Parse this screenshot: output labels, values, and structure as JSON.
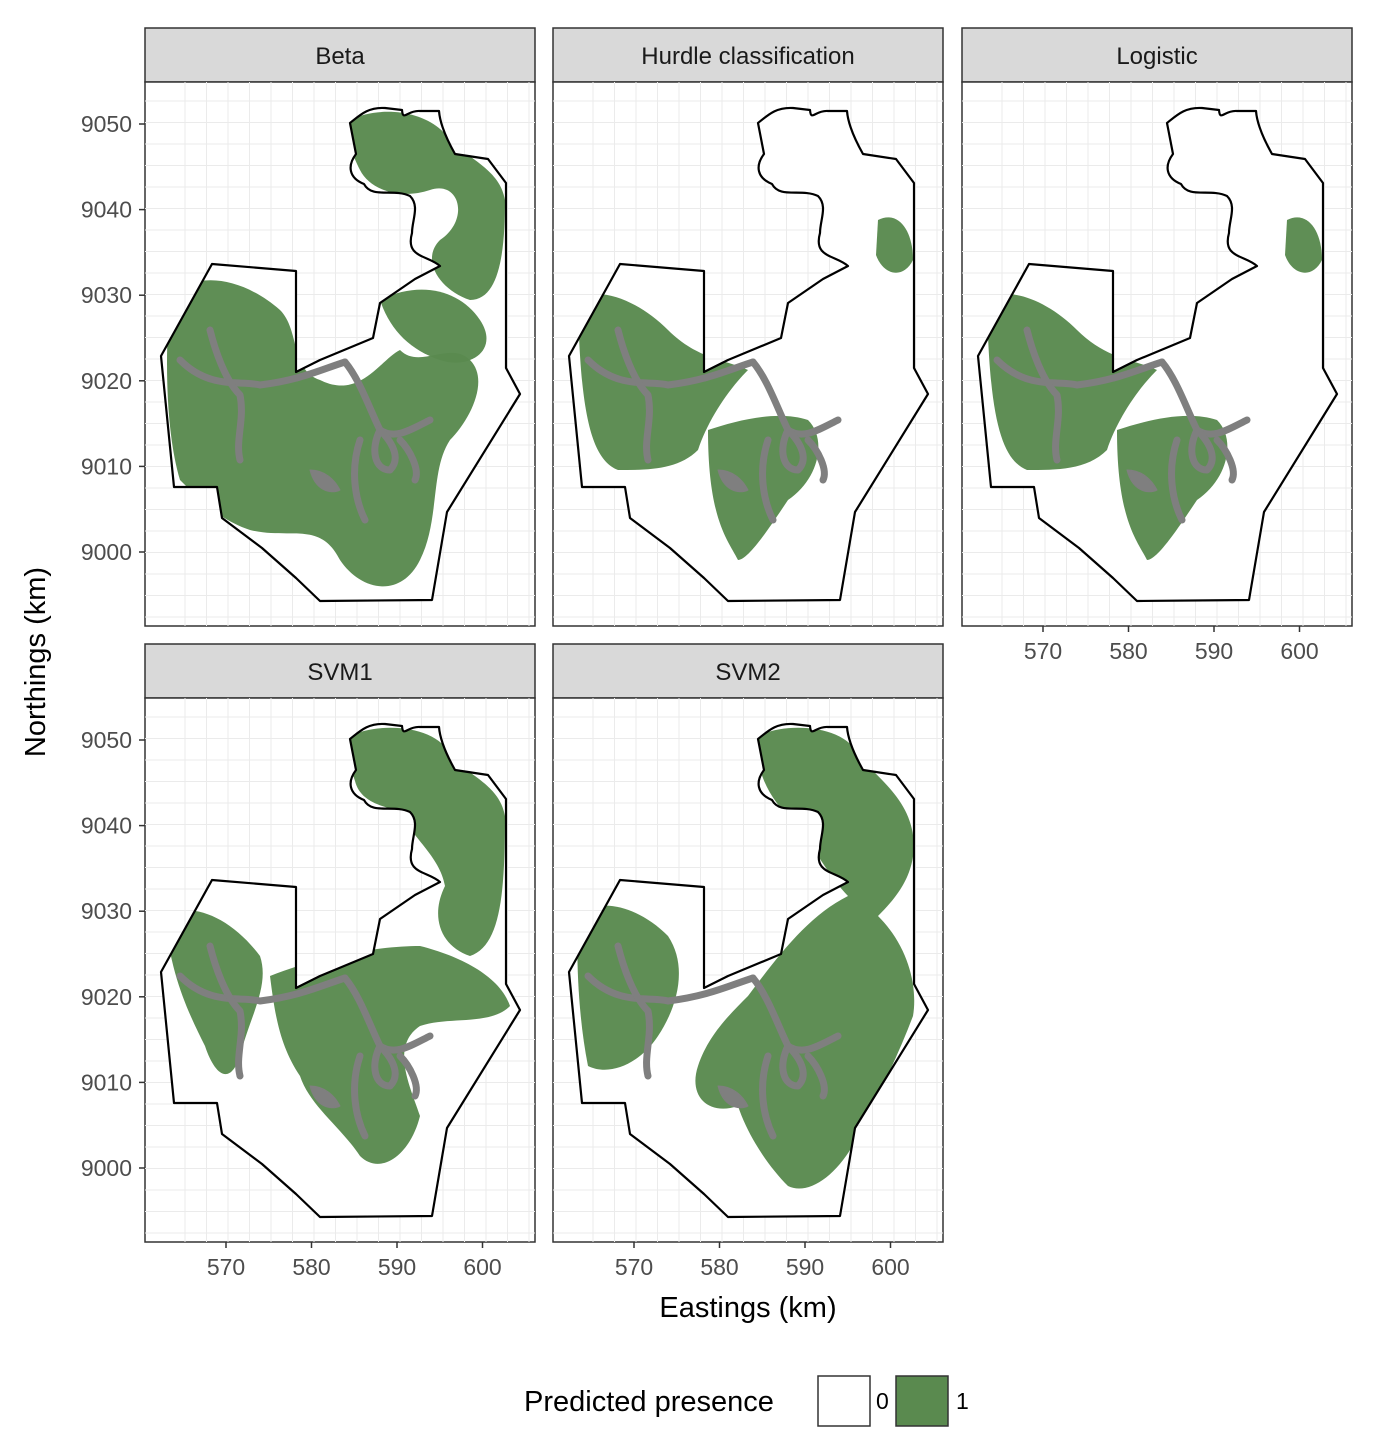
{
  "panels": [
    {
      "title": "Beta",
      "extent": "wide"
    },
    {
      "title": "Hurdle classification",
      "extent": "narrow"
    },
    {
      "title": "Logistic",
      "extent": "narrow"
    },
    {
      "title": "SVM1",
      "extent": "svm1"
    },
    {
      "title": "SVM2",
      "extent": "svm2"
    }
  ],
  "x_axis": {
    "title": "Eastings (km)",
    "ticks": [
      570,
      580,
      590,
      600
    ],
    "labels": [
      "570",
      "580",
      "590",
      "600"
    ]
  },
  "y_axis": {
    "title": "Northings (km)",
    "ticks": [
      9000,
      9010,
      9020,
      9030,
      9040,
      9050
    ],
    "labels": [
      "9000",
      "9010",
      "9020",
      "9030",
      "9040",
      "9050"
    ]
  },
  "legend": {
    "title": "Predicted presence",
    "items": [
      {
        "label": "0",
        "color": "#ffffff"
      },
      {
        "label": "1",
        "color": "#5a8a4f"
      }
    ]
  },
  "colors": {
    "presence": "#5a8a4f",
    "river": "#7f7f7f",
    "boundary": "#000000",
    "strip": "#d9d9d9",
    "grid": "#ebebeb"
  }
}
